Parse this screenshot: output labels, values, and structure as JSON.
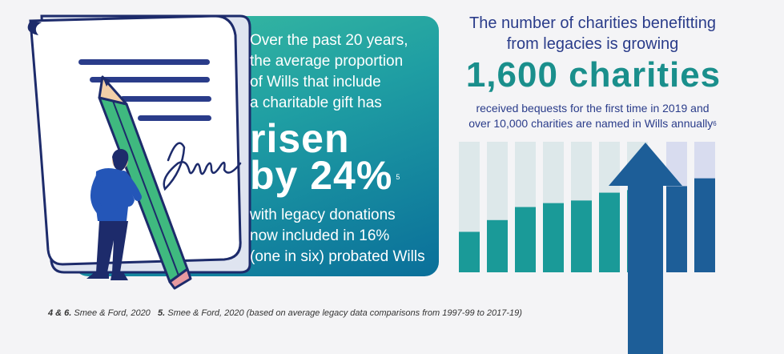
{
  "left": {
    "intro": [
      "Over the past 20 years,",
      "the average proportion",
      "of Wills that include",
      "a charitable gift has"
    ],
    "big_line1": "risen",
    "big_line2": "by 24%",
    "big_ref": "5",
    "outro": [
      "with legacy donations",
      "now included in 16%",
      "(one in six) probated Wills"
    ]
  },
  "right": {
    "heading_line1": "The number of charities benefitting",
    "heading_line2": "from legacies is growing",
    "big": "1,600 charities",
    "sub_line1": "received bequests for the first time in 2019 and",
    "sub_line2": "over 10,000 charities are named in Wills annually",
    "sub_ref": "6"
  },
  "bar_graphic": {
    "levels": [
      0.31,
      0.4,
      0.5,
      0.53,
      0.55,
      0.61,
      0.63,
      0.66,
      0.72
    ],
    "colors": {
      "track_left": "#dde8ea",
      "track_right": "#d8dcef",
      "fill_left": "#1a9a98",
      "fill_right": "#1d5e98",
      "arrow": "#1d5e98"
    }
  },
  "footnote": {
    "ref1": "4 & 6.",
    "text1": " Smee & Ford, 2020",
    "ref2": "5.",
    "text2": " Smee & Ford, 2020 (based on average legacy data comparisons from 1997-99 to 2017-19)"
  },
  "colors": {
    "panel_start": "#3cbfa0",
    "panel_end": "#0a6f9a",
    "heading": "#2a3c8a",
    "highlight": "#1a8f8c"
  }
}
